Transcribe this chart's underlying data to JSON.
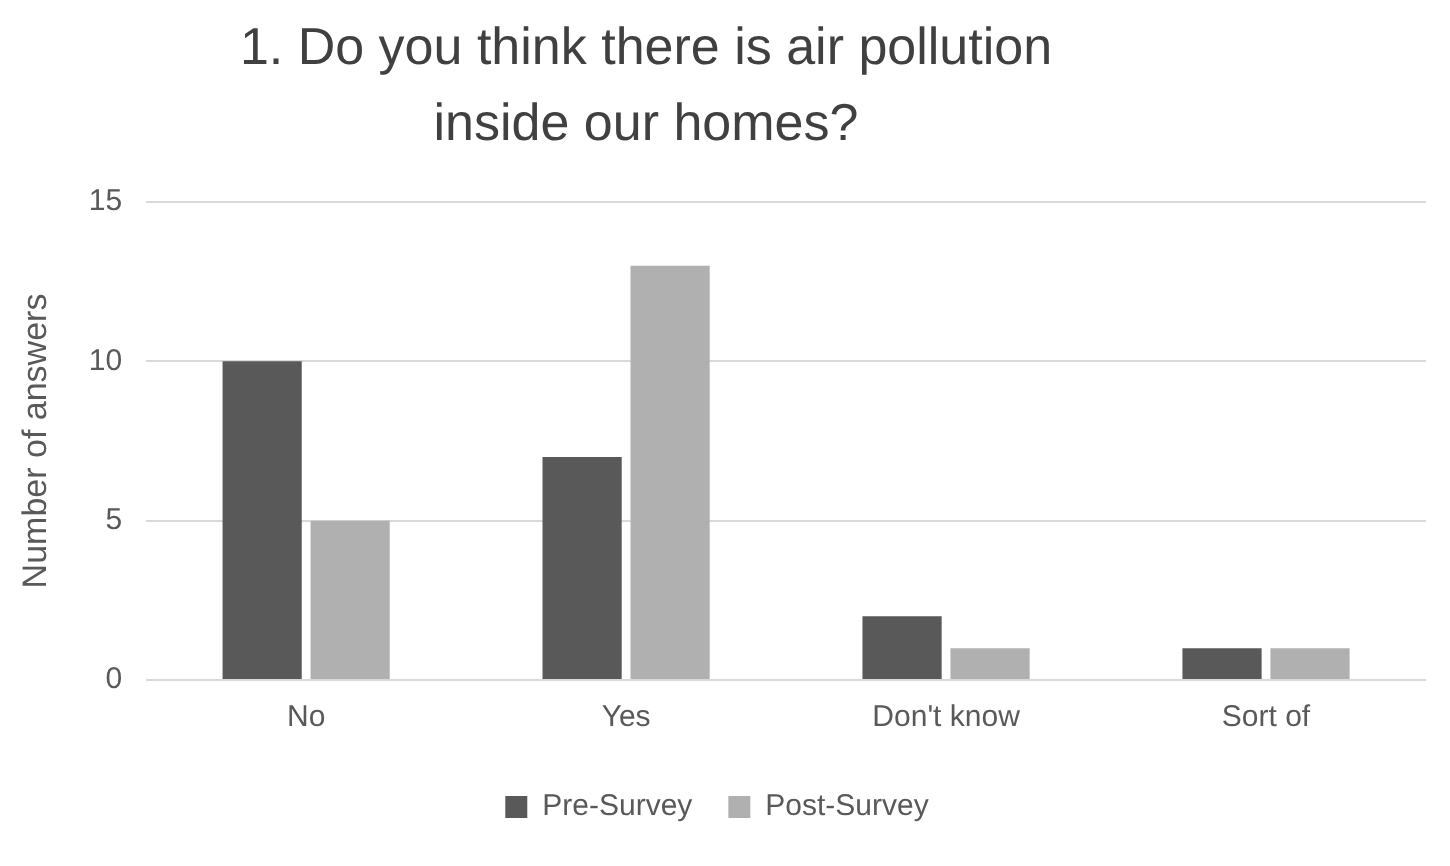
{
  "chart_data": {
    "type": "bar",
    "title": "1. Do you think there is air pollution inside our homes?",
    "ylabel": "Number of answers",
    "categories": [
      "No",
      "Yes",
      "Don't know",
      "Sort of"
    ],
    "series": [
      {
        "name": "Pre-Survey",
        "color": "#595959",
        "values": [
          10,
          7,
          2,
          1
        ]
      },
      {
        "name": "Post-Survey",
        "color": "#b0b0b0",
        "values": [
          5,
          13,
          1,
          1
        ]
      }
    ],
    "ylim": [
      0,
      15
    ],
    "yticks": [
      0,
      5,
      10,
      15
    ],
    "grid": "y",
    "legend": "bottom"
  }
}
